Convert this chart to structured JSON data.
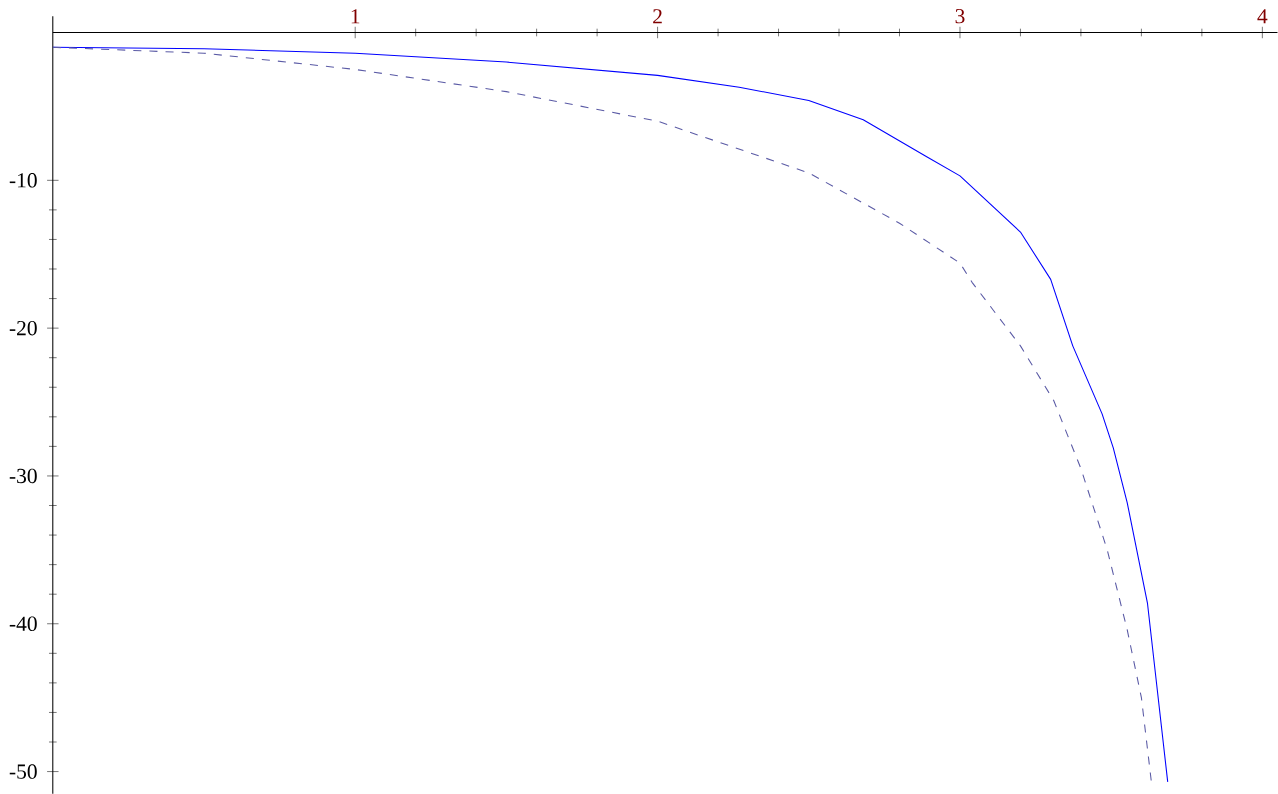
{
  "chart_data": {
    "type": "line",
    "xlim": [
      0,
      4.05
    ],
    "ylim": [
      -51.5,
      1.1
    ],
    "xticks": [
      1,
      2,
      3,
      4
    ],
    "yticks": [
      -50,
      -40,
      -30,
      -20,
      -10
    ],
    "grid": false,
    "marker": "none",
    "series": [
      {
        "color": "#0000ff",
        "line_style": "solid",
        "x": [
          0,
          0.5,
          1,
          1.5,
          2,
          2.27,
          2.5,
          2.68,
          2.89,
          3,
          3.2,
          3.3,
          3.373,
          3.47,
          3.507,
          3.553,
          3.62,
          3.687
        ],
        "values": [
          -1,
          -1.1,
          -1.4,
          -2.0,
          -2.9,
          -3.7,
          -4.6,
          -5.9,
          -8.4,
          -9.7,
          -13.5,
          -16.7,
          -21.2,
          -25.8,
          -28.1,
          -31.8,
          -38.6,
          -50.7
        ]
      },
      {
        "color": "#5a5aa5",
        "line_style": "dashed",
        "x": [
          0,
          0.5,
          1,
          1.5,
          2,
          2.5,
          2.8,
          3,
          3.04,
          3.2,
          3.31,
          3.4,
          3.487,
          3.553,
          3.6,
          3.633
        ],
        "values": [
          -1,
          -1.4,
          -2.5,
          -4.0,
          -6.0,
          -9.5,
          -12.9,
          -15.6,
          -16.9,
          -21.2,
          -24.9,
          -29.5,
          -35.0,
          -40.4,
          -45.0,
          -50.7
        ]
      }
    ]
  }
}
